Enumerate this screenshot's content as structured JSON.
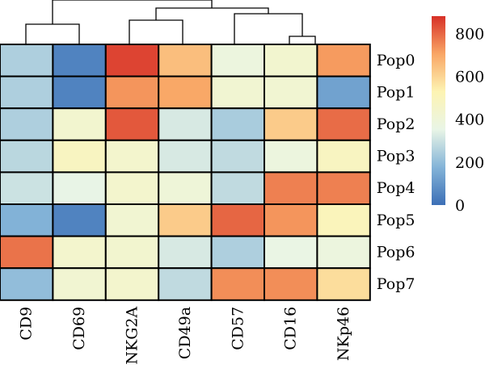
{
  "chart_data": {
    "type": "heatmap",
    "columns": [
      "CD9",
      "CD69",
      "NKG2A",
      "CD49a",
      "CD57",
      "CD16",
      "NKp46"
    ],
    "rows": [
      "Pop0",
      "Pop1",
      "Pop2",
      "Pop3",
      "Pop4",
      "Pop5",
      "Pop6",
      "Pop7"
    ],
    "values": [
      [
        250,
        50,
        850,
        650,
        380,
        430,
        720
      ],
      [
        250,
        50,
        730,
        700,
        420,
        420,
        130
      ],
      [
        250,
        430,
        820,
        320,
        240,
        620,
        790
      ],
      [
        270,
        480,
        440,
        320,
        280,
        380,
        480
      ],
      [
        300,
        350,
        440,
        400,
        280,
        760,
        760
      ],
      [
        170,
        50,
        420,
        620,
        800,
        730,
        500
      ],
      [
        780,
        440,
        430,
        320,
        250,
        360,
        380
      ],
      [
        200,
        420,
        440,
        280,
        740,
        740,
        580
      ]
    ],
    "colorbar": {
      "min": 0,
      "max": 880,
      "ticks": [
        0,
        200,
        400,
        600,
        800
      ],
      "tick_labels": [
        "0",
        "200",
        "400",
        "600",
        "800"
      ],
      "colors": [
        "#3c6fb6",
        "#84b4d8",
        "#e9f5e6",
        "#fdf4b3",
        "#f9a665",
        "#d73027"
      ]
    },
    "column_dendrogram": true,
    "row_dendrogram": false
  }
}
